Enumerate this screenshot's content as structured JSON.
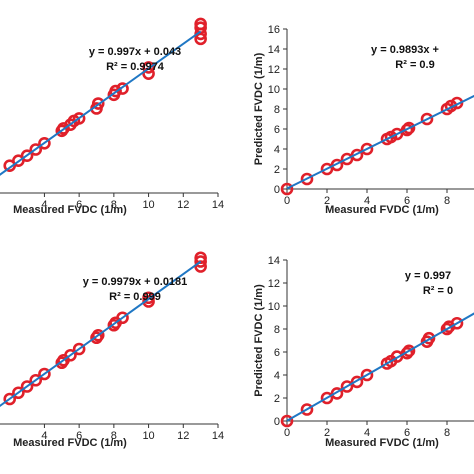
{
  "chart_data": [
    {
      "type": "scatter",
      "panel": "top-left",
      "xlabel": "Measured FVDC (1/m)",
      "ylabel": "",
      "xlim": [
        0,
        14
      ],
      "ylim": [
        0,
        14
      ],
      "xticks": [
        4,
        6,
        8,
        10,
        12,
        14
      ],
      "yticks": [],
      "grid": false,
      "equation": "y = 0.997x + 0.043",
      "r_squared": "R² = 0.9974",
      "fit": {
        "slope": 0.997,
        "intercept": 0.043
      },
      "x": [
        2.0,
        2.5,
        3.0,
        3.5,
        4.0,
        5.0,
        5.1,
        5.5,
        5.7,
        6.0,
        7.0,
        7.1,
        8.0,
        8.1,
        8.5,
        10.0,
        10.0,
        13.0,
        13.0,
        13.0,
        13.0
      ],
      "y": [
        2.2,
        2.6,
        3.0,
        3.5,
        4.0,
        5.0,
        5.2,
        5.5,
        5.8,
        6.0,
        6.8,
        7.2,
        7.9,
        8.2,
        8.4,
        9.6,
        10.1,
        12.4,
        12.8,
        13.3,
        13.6
      ]
    },
    {
      "type": "scatter",
      "panel": "top-right",
      "xlabel": "Measured FVDC (1/m)",
      "ylabel": "Predicted FVDC (1/m)",
      "xlim": [
        0,
        10
      ],
      "ylim": [
        0,
        16
      ],
      "xticks": [
        0,
        2,
        4,
        6,
        8
      ],
      "yticks": [
        0,
        2,
        4,
        6,
        8,
        10,
        12,
        14,
        16
      ],
      "grid": false,
      "equation": "y = 0.9893x + ",
      "r_squared": "R² = 0.9",
      "fit": {
        "slope": 0.9893,
        "intercept": 0.05
      },
      "x": [
        0.0,
        1.0,
        2.0,
        2.5,
        3.0,
        3.5,
        4.0,
        5.0,
        5.2,
        5.5,
        6.0,
        6.1,
        7.0,
        8.0,
        8.2,
        8.5
      ],
      "y": [
        0.0,
        1.0,
        2.0,
        2.4,
        3.0,
        3.4,
        4.0,
        5.0,
        5.2,
        5.5,
        5.9,
        6.1,
        7.0,
        8.0,
        8.3,
        8.6
      ]
    },
    {
      "type": "scatter",
      "panel": "bottom-left",
      "xlabel": "Measured FVDC (1/m)",
      "ylabel": "",
      "xlim": [
        0,
        14
      ],
      "ylim": [
        0,
        14
      ],
      "xticks": [
        4,
        6,
        8,
        10,
        12,
        14
      ],
      "yticks": [],
      "grid": false,
      "equation": "y = 0.9979x + 0.0181",
      "r_squared": "R² = 0.999",
      "fit": {
        "slope": 0.9979,
        "intercept": 0.0181
      },
      "x": [
        2.0,
        2.5,
        3.0,
        3.5,
        4.0,
        5.0,
        5.1,
        5.5,
        6.0,
        7.0,
        7.1,
        8.0,
        8.1,
        8.5,
        10.0,
        10.0,
        13.0,
        13.0,
        13.0
      ],
      "y": [
        2.0,
        2.5,
        3.0,
        3.5,
        4.0,
        4.9,
        5.1,
        5.5,
        6.0,
        6.9,
        7.1,
        7.9,
        8.1,
        8.5,
        9.8,
        10.1,
        12.6,
        13.0,
        13.3
      ]
    },
    {
      "type": "scatter",
      "panel": "bottom-right",
      "xlabel": "Measured FVDC (1/m)",
      "ylabel": "Predicted FVDC (1/m)",
      "xlim": [
        0,
        10
      ],
      "ylim": [
        0,
        14
      ],
      "xticks": [
        0,
        2,
        4,
        6,
        8
      ],
      "yticks": [
        0,
        2,
        4,
        6,
        8,
        10,
        12,
        14
      ],
      "grid": false,
      "equation": "y = 0.997",
      "r_squared": "R² = 0",
      "fit": {
        "slope": 0.997,
        "intercept": 0.02
      },
      "x": [
        0.0,
        1.0,
        2.0,
        2.5,
        3.0,
        3.5,
        4.0,
        5.0,
        5.2,
        5.5,
        6.0,
        6.1,
        7.0,
        7.1,
        8.0,
        8.1,
        8.5
      ],
      "y": [
        0.0,
        1.0,
        2.0,
        2.4,
        3.0,
        3.4,
        4.0,
        5.0,
        5.2,
        5.6,
        5.9,
        6.1,
        6.9,
        7.2,
        8.0,
        8.2,
        8.5
      ]
    }
  ],
  "colors": {
    "marker": "#e0202a",
    "fit_line": "#1f77c4",
    "axis": "#333333"
  }
}
